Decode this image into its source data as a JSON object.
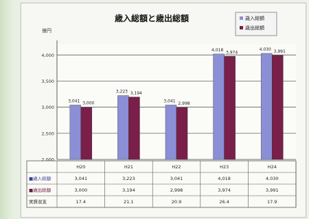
{
  "chart_data": {
    "type": "bar",
    "title": "歳入総額と歳出総額",
    "ylabel": "億円",
    "ylim": [
      2000,
      4200
    ],
    "yticks": [
      2000,
      2500,
      3000,
      3500,
      4000
    ],
    "ytick_labels": [
      "2,000",
      "2,500",
      "3,000",
      "3,500",
      "4,000"
    ],
    "categories": [
      "H20",
      "H21",
      "H22",
      "H23",
      "H24"
    ],
    "grid": true,
    "legend_position": "top-right",
    "series": [
      {
        "name": "歳入総額",
        "color": "#8b8fd6",
        "values": [
          3041,
          3223,
          3041,
          4018,
          4030
        ],
        "labels": [
          "3,041",
          "3,223",
          "3,041",
          "4,018",
          "4,030"
        ]
      },
      {
        "name": "歳出総額",
        "color": "#7a1f4a",
        "values": [
          3000,
          3194,
          2998,
          3974,
          3991
        ],
        "labels": [
          "3,000",
          "3,194",
          "2,998",
          "3,974",
          "3,991"
        ]
      }
    ],
    "table": {
      "row_labels": [
        "■歳入総額",
        "■歳出総額",
        "実質収支"
      ],
      "rows": [
        [
          "3,041",
          "3,223",
          "3,041",
          "4,018",
          "4,030"
        ],
        [
          "3,000",
          "3,194",
          "2,998",
          "3,974",
          "3,991"
        ],
        [
          "17.4",
          "21.1",
          "20.9",
          "26.4",
          "17.9"
        ]
      ]
    }
  }
}
